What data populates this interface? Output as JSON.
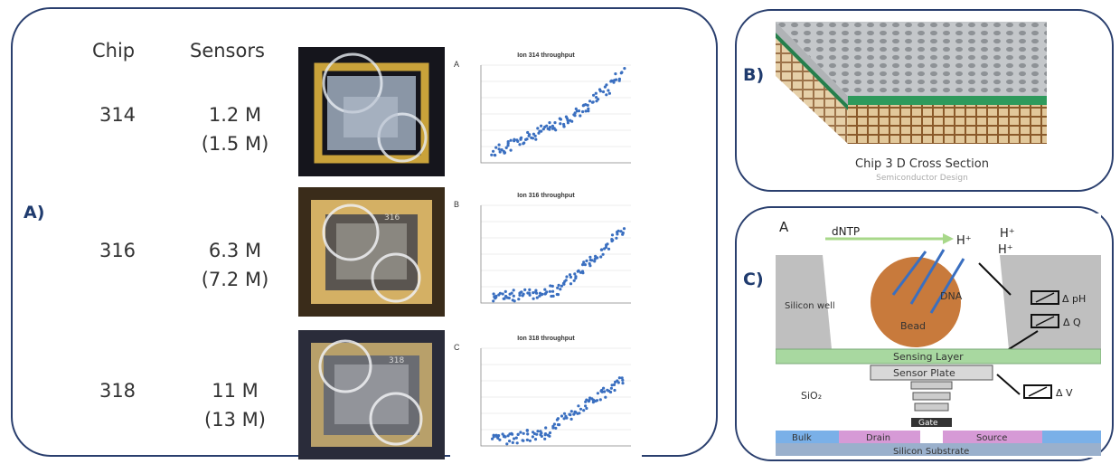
{
  "panelA": {
    "label": "A)",
    "header_chip": "Chip",
    "header_sensors": "Sensors",
    "rows": [
      {
        "chip": "314",
        "sensors": "1.2 M",
        "sensors_alt": "(1.5 M)",
        "graph_letter": "A",
        "graph_title": "Ion 314 throughput",
        "die_mark": ""
      },
      {
        "chip": "316",
        "sensors": "6.3 M",
        "sensors_alt": "(7.2 M)",
        "graph_letter": "B",
        "graph_title": "Ion 316 throughput",
        "die_mark": "316"
      },
      {
        "chip": "318",
        "sensors": "11 M",
        "sensors_alt": "(13 M)",
        "graph_letter": "C",
        "graph_title": "Ion 318 throughput",
        "die_mark": "318"
      }
    ]
  },
  "panelB": {
    "label": "B)",
    "caption": "Chip 3 D Cross Section",
    "subcaption": "Semiconductor Design"
  },
  "panelC": {
    "label": "C)",
    "fig_letter": "A",
    "dntp": "dNTP",
    "h_plus": "H⁺",
    "silicon_well": "Silicon well",
    "dna": "DNA",
    "bead": "Bead",
    "delta_ph": "Δ pH",
    "delta_q": "Δ Q",
    "delta_v": "Δ V",
    "sensing_layer": "Sensing Layer",
    "sensor_plate": "Sensor Plate",
    "sio2": "SiO₂",
    "gate": "Gate",
    "bulk": "Bulk",
    "drain": "Drain",
    "source": "Source",
    "substrate": "Silicon Substrate"
  },
  "colors": {
    "panel_border": "#2a3f6e",
    "label": "#1f3b6e",
    "sensing_layer": "#a8d8a0",
    "bead": "#c87a3c",
    "point": "#3a6fc0",
    "drain_source": "#d69ad6",
    "bulk": "#7ab0e8"
  }
}
